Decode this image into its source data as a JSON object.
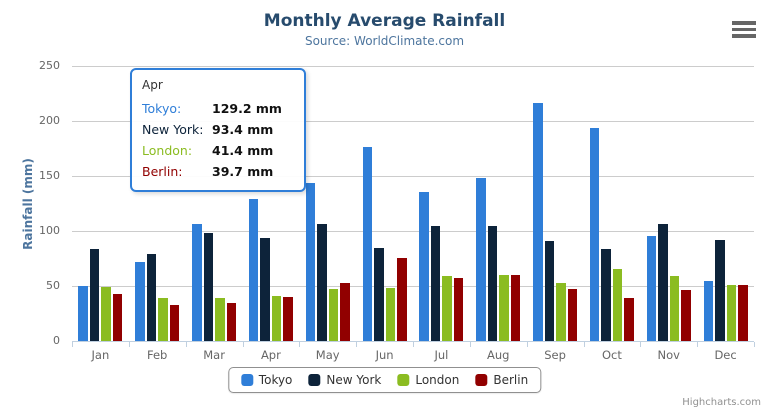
{
  "title": "Monthly Average Rainfall",
  "subtitle": "Source: WorldClimate.com",
  "credits": "Highcharts.com",
  "chart_data": {
    "type": "bar",
    "title": "Monthly Average Rainfall",
    "subtitle": "Source: WorldClimate.com",
    "categories": [
      "Jan",
      "Feb",
      "Mar",
      "Apr",
      "May",
      "Jun",
      "Jul",
      "Aug",
      "Sep",
      "Oct",
      "Nov",
      "Dec"
    ],
    "series": [
      {
        "name": "Tokyo",
        "color": "#2f7ed8",
        "values": [
          49.9,
          71.5,
          106.4,
          129.2,
          144.0,
          176.0,
          135.6,
          148.5,
          216.4,
          194.1,
          95.6,
          54.4
        ]
      },
      {
        "name": "New York",
        "color": "#0d233a",
        "values": [
          83.6,
          78.8,
          98.5,
          93.4,
          106.0,
          84.5,
          105.0,
          104.3,
          91.2,
          83.5,
          106.6,
          92.3
        ]
      },
      {
        "name": "London",
        "color": "#8bbc21",
        "values": [
          48.9,
          38.8,
          39.3,
          41.4,
          47.0,
          48.3,
          59.0,
          59.6,
          52.4,
          65.2,
          59.3,
          51.2
        ]
      },
      {
        "name": "Berlin",
        "color": "#910000",
        "values": [
          42.4,
          33.2,
          34.5,
          39.7,
          52.6,
          75.5,
          57.4,
          60.4,
          47.6,
          39.1,
          46.8,
          51.1
        ]
      }
    ],
    "xlabel": "",
    "ylabel": "Rainfall (mm)",
    "ylim": [
      0,
      250
    ],
    "yticks": [
      0,
      50,
      100,
      150,
      200,
      250
    ],
    "grid": true,
    "legend_position": "bottom"
  },
  "tooltip": {
    "header": "Apr",
    "rows": [
      {
        "label": "Tokyo:",
        "value": "129.2 mm",
        "color": "#2f7ed8"
      },
      {
        "label": "New York:",
        "value": "93.4 mm",
        "color": "#0d233a"
      },
      {
        "label": "London:",
        "value": "41.4 mm",
        "color": "#8bbc21"
      },
      {
        "label": "Berlin:",
        "value": "39.7 mm",
        "color": "#910000"
      }
    ]
  }
}
